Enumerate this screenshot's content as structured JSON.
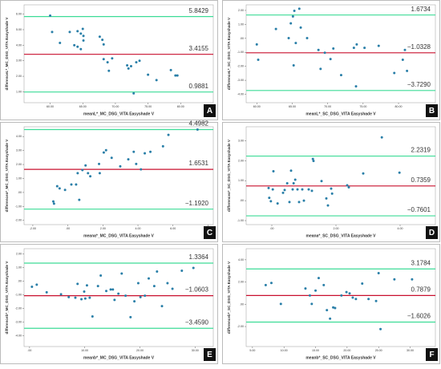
{
  "chart_data": [
    {
      "type": "scatter",
      "panel": "A",
      "xlabel": "meanL*_MC_DSG_VITA Easyshade V",
      "ylabel": "differenceL*_MC_DSG_VITA Easyshade V",
      "color": "#2a7fa8",
      "xlim": [
        56,
        85
      ],
      "xticks": [
        {
          "value": 60,
          "label": "60.00"
        },
        {
          "value": 65,
          "label": "65.00"
        },
        {
          "value": 70,
          "label": "70.00"
        },
        {
          "value": 75,
          "label": "75.00"
        },
        {
          "value": 80,
          "label": "80.00"
        }
      ],
      "ylim": [
        0.3,
        6.6
      ],
      "yticks": [
        {
          "value": 1,
          "label": "1.00"
        },
        {
          "value": 2,
          "label": "2.00"
        },
        {
          "value": 3,
          "label": "3.00"
        },
        {
          "value": 4,
          "label": "4.00"
        },
        {
          "value": 5,
          "label": "5.00"
        },
        {
          "value": 6,
          "label": "6.00"
        }
      ],
      "lines": [
        {
          "value": 5.8429,
          "label": "5.8429",
          "color": "#3ddc97"
        },
        {
          "value": 3.4155,
          "label": "3.4155",
          "color": "#c8102e"
        },
        {
          "value": 0.9881,
          "label": "0.9881",
          "color": "#3ddc97"
        }
      ],
      "x": [
        60,
        60.3,
        61.5,
        63,
        64.2,
        64.7,
        65,
        65.1,
        63.7,
        64.2,
        64.7,
        65.1,
        67.6,
        68,
        68.2,
        68.2,
        68.8,
        69,
        69.5,
        71.8,
        72,
        72.4,
        73.2,
        73.7,
        75,
        76.3,
        72.8,
        78.5,
        79.2,
        79.5
      ],
      "values": [
        5.9,
        4.85,
        4.15,
        4.85,
        4.9,
        4.75,
        5.05,
        4.6,
        4.0,
        3.9,
        3.75,
        4.3,
        4.55,
        4.35,
        4.05,
        3.1,
        2.9,
        2.35,
        3.15,
        2.7,
        2.5,
        2.65,
        2.9,
        3.0,
        2.1,
        1.75,
        0.9,
        2.4,
        2.05,
        2.05
      ]
    },
    {
      "type": "scatter",
      "panel": "B",
      "xlabel": "meanL*_SC_DSG_VITA Easyshade V",
      "ylabel": "differenceL*_SC_DSG_VITA Easyshade V",
      "color": "#2a7fa8",
      "xlim": [
        58.5,
        85.2
      ],
      "xticks": [
        {
          "value": 60,
          "label": "60.00"
        },
        {
          "value": 65,
          "label": "65.00"
        },
        {
          "value": 70,
          "label": "70.00"
        },
        {
          "value": 75,
          "label": "75.00"
        },
        {
          "value": 80,
          "label": "80.00"
        }
      ],
      "ylim": [
        -4.6,
        2.4
      ],
      "yticks": [
        {
          "value": -4,
          "label": "-4.00"
        },
        {
          "value": -3,
          "label": "-3.00"
        },
        {
          "value": -2,
          "label": "-2.00"
        },
        {
          "value": -1,
          "label": "-1.00"
        },
        {
          "value": 0,
          "label": ".00"
        },
        {
          "value": 1,
          "label": "1.00"
        },
        {
          "value": 2,
          "label": "2.00"
        }
      ],
      "lines": [
        {
          "value": 1.6734,
          "label": "1.6734",
          "color": "#3ddc97"
        },
        {
          "value": -1.0328,
          "label": "−1.0328",
          "color": "#c8102e"
        },
        {
          "value": -3.729,
          "label": "−3.7290",
          "color": "#3ddc97"
        }
      ],
      "x": [
        60,
        60.2,
        62.7,
        64.5,
        64.8,
        65.1,
        65.3,
        65.5,
        66,
        66.2,
        65.2,
        67.1,
        68.7,
        69,
        69.6,
        70.4,
        70.8,
        71.9,
        73.7,
        74,
        74.1,
        75.2,
        77.2,
        79.4,
        80.6,
        80.9,
        81.2
      ],
      "values": [
        -0.43,
        -1.53,
        0.67,
        0.02,
        1.07,
        1.57,
        1.97,
        -0.33,
        2.12,
        0.77,
        -1.93,
        0.02,
        -0.83,
        -2.18,
        -1.03,
        -1.48,
        -0.73,
        -2.63,
        -0.68,
        -3.43,
        -0.43,
        -0.68,
        -0.53,
        -2.48,
        -1.53,
        -0.83,
        -2.33
      ]
    },
    {
      "type": "scatter",
      "panel": "C",
      "xlabel": "meana*_MC_DSG_VITA Easyshade V",
      "ylabel": "differencea*_MC_DSG_VITA Easyshade V",
      "color": "#2a7fa8",
      "xlim": [
        -2.5,
        8.3
      ],
      "xticks": [
        {
          "value": -2,
          "label": "-2.00"
        },
        {
          "value": 0,
          "label": ".00"
        },
        {
          "value": 2,
          "label": "2.00"
        },
        {
          "value": 4,
          "label": "4.00"
        },
        {
          "value": 6,
          "label": "6.00"
        },
        {
          "value": 8,
          "label": "8.00"
        }
      ],
      "ylim": [
        -2.3,
        4.7
      ],
      "yticks": [
        {
          "value": -2,
          "label": "-2.00"
        },
        {
          "value": -1,
          "label": "-1.00"
        },
        {
          "value": 0,
          "label": ".00"
        },
        {
          "value": 1,
          "label": "1.00"
        },
        {
          "value": 2,
          "label": "2.00"
        },
        {
          "value": 3,
          "label": "3.00"
        },
        {
          "value": 4,
          "label": "4.00"
        }
      ],
      "lines": [
        {
          "value": 4.4982,
          "label": "4.4982",
          "color": "#3ddc97"
        },
        {
          "value": 1.6531,
          "label": "1.6531",
          "color": "#c8102e"
        },
        {
          "value": -1.192,
          "label": "−1.1920",
          "color": "#3ddc97"
        }
      ],
      "x": [
        -0.83,
        -0.79,
        -0.61,
        -0.47,
        -0.16,
        0.2,
        0.47,
        0.65,
        0.56,
        0.83,
        1.01,
        1.15,
        1.28,
        1.78,
        1.82,
        2.05,
        2.18,
        2.5,
        2.99,
        3.45,
        3.76,
        3.9,
        4.17,
        4.39,
        4.71,
        5.43,
        5.74,
        7.4
      ],
      "values": [
        -0.64,
        -0.8,
        0.45,
        0.29,
        0.18,
        0.57,
        0.57,
        -0.53,
        1.38,
        1.6,
        1.93,
        1.38,
        1.16,
        2.04,
        1.38,
        2.86,
        3.02,
        2.48,
        1.87,
        2.37,
        2.91,
        2.04,
        1.65,
        2.8,
        2.91,
        3.3,
        4.12,
        4.5
      ]
    },
    {
      "type": "scatter",
      "panel": "D",
      "xlabel": "meana*_SC_DSG_VITA Easyshade V",
      "ylabel": "differencea*_SC_DSG_VITA Easyshade V",
      "color": "#2a7fa8",
      "xlim": [
        -0.8,
        5.1
      ],
      "xticks": [
        {
          "value": 0,
          "label": ".00"
        },
        {
          "value": 2,
          "label": "2.00"
        },
        {
          "value": 4,
          "label": "4.00"
        }
      ],
      "ylim": [
        -1.2,
        3.7
      ],
      "yticks": [
        {
          "value": -1,
          "label": "-1.00"
        },
        {
          "value": 0,
          "label": ".00"
        },
        {
          "value": 1,
          "label": "1.00"
        },
        {
          "value": 2,
          "label": "2.00"
        },
        {
          "value": 3,
          "label": "3.00"
        }
      ],
      "lines": [
        {
          "value": 2.2319,
          "label": "2.2319",
          "color": "#3ddc97"
        },
        {
          "value": 0.7359,
          "label": "0.7359",
          "color": "#c8102e"
        },
        {
          "value": -0.7601,
          "label": "−0.7601",
          "color": "#3ddc97"
        }
      ],
      "x": [
        -0.1,
        -0.08,
        -0.03,
        0.03,
        0.05,
        0.18,
        0.35,
        0.4,
        0.48,
        0.55,
        0.6,
        0.65,
        0.68,
        0.73,
        0.8,
        0.85,
        0.95,
        1.0,
        1.15,
        1.25,
        1.28,
        1.3,
        1.55,
        1.7,
        1.75,
        1.85,
        1.88,
        2.35,
        2.4,
        2.85,
        3.43,
        3.98
      ],
      "values": [
        0.63,
        0.14,
        -0.03,
        0.56,
        1.47,
        -0.14,
        0.39,
        0.53,
        0.87,
        -0.07,
        1.5,
        0.56,
        0.87,
        1.05,
        0.56,
        -0.07,
        0.56,
        0.0,
        0.56,
        0.49,
        2.09,
        1.99,
        0.98,
        0.11,
        -0.24,
        0.6,
        0.35,
        0.77,
        0.67,
        1.36,
        3.17,
        1.4
      ]
    },
    {
      "type": "scatter",
      "panel": "E",
      "xlabel": "meanb*_MC_DSG_VITA Easyshade V",
      "ylabel": "differenceb*_MC_DSG_VITA Easyshade V",
      "color": "#2a7fa8",
      "xlim": [
        -1,
        33.3
      ],
      "xticks": [
        {
          "value": 0,
          "label": ".00"
        },
        {
          "value": 10,
          "label": "10.00"
        },
        {
          "value": 20,
          "label": "20.00"
        },
        {
          "value": 30,
          "label": "30.00"
        }
      ],
      "ylim": [
        -4.8,
        2.4
      ],
      "yticks": [
        {
          "value": -4,
          "label": "-4.00"
        },
        {
          "value": -3,
          "label": "-3.00"
        },
        {
          "value": -2,
          "label": "-2.00"
        },
        {
          "value": -1,
          "label": "-1.00"
        },
        {
          "value": 0,
          "label": ".00"
        },
        {
          "value": 1,
          "label": "1.00"
        },
        {
          "value": 2,
          "label": "2.00"
        }
      ],
      "lines": [
        {
          "value": 1.3364,
          "label": "1.3364",
          "color": "#3ddc97"
        },
        {
          "value": -1.0603,
          "label": "−1.0603",
          "color": "#c8102e"
        },
        {
          "value": -3.459,
          "label": "−3.4590",
          "color": "#3ddc97"
        }
      ],
      "x": [
        0.43,
        1.3,
        3.1,
        5.7,
        7.1,
        8.3,
        8.7,
        9.4,
        9.9,
        10.1,
        10.4,
        10.9,
        11.4,
        12.4,
        12.9,
        13.9,
        14.7,
        15.1,
        15.4,
        16.1,
        16.7,
        17.4,
        18.3,
        19,
        19.7,
        20.1,
        20.9,
        21.6,
        22.6,
        23.1,
        24,
        25,
        25.9,
        27.6,
        29.7
      ],
      "values": [
        -0.4,
        -0.25,
        -0.81,
        -0.96,
        -1.16,
        -1.21,
        -0.19,
        -1.32,
        -0.76,
        -1.27,
        -0.3,
        -1.21,
        -2.59,
        -0.35,
        0.42,
        -0.71,
        -0.6,
        -0.6,
        -1.37,
        -0.91,
        0.57,
        -1.06,
        -2.64,
        -1.47,
        -0.14,
        -1.16,
        -1.06,
        0.21,
        -0.35,
        0.72,
        -1.83,
        -0.14,
        -0.55,
        0.78,
        0.98
      ]
    },
    {
      "type": "scatter",
      "panel": "F",
      "xlabel": "meanb*_SC_DSG_VITA Easyshade V",
      "ylabel": "differenceb*_SC_DSG_VITA Easyshade V",
      "color": "#2a7fa8",
      "xlim": [
        4,
        34
      ],
      "xticks": [
        {
          "value": 5,
          "label": "5.00"
        },
        {
          "value": 10,
          "label": "10.00"
        },
        {
          "value": 15,
          "label": "15.00"
        },
        {
          "value": 20,
          "label": "20.00"
        },
        {
          "value": 25,
          "label": "25.00"
        },
        {
          "value": 30,
          "label": "30.00"
        }
      ],
      "ylim": [
        -3.8,
        5.0
      ],
      "yticks": [
        {
          "value": -2,
          "label": "-2.00"
        },
        {
          "value": 0,
          "label": ".00"
        },
        {
          "value": 2,
          "label": "2.00"
        },
        {
          "value": 4,
          "label": "4.00"
        }
      ],
      "lines": [
        {
          "value": 3.1784,
          "label": "3.1784",
          "color": "#3ddc97"
        },
        {
          "value": 0.7879,
          "label": "0.7879",
          "color": "#c8102e"
        },
        {
          "value": -1.6026,
          "label": "−1.6026",
          "color": "#3ddc97"
        }
      ],
      "x": [
        7.1,
        8,
        9.5,
        13.4,
        14.1,
        14.4,
        15,
        15.5,
        16.3,
        16.8,
        17.3,
        17.8,
        18.1,
        19.1,
        19.9,
        20.4,
        20.9,
        21.4,
        22.4,
        23.4,
        24.6,
        25,
        25.3,
        27.5,
        30.3
      ],
      "values": [
        1.73,
        1.92,
        0.03,
        1.42,
        0.79,
        0.03,
        1.23,
        2.36,
        1.73,
        -0.53,
        -1.29,
        -0.28,
        -0.34,
        0.79,
        1.1,
        0.98,
        0.6,
        0.47,
        1.86,
        0.47,
        0.29,
        2.8,
        -2.23,
        2.24,
        2.24
      ]
    }
  ]
}
